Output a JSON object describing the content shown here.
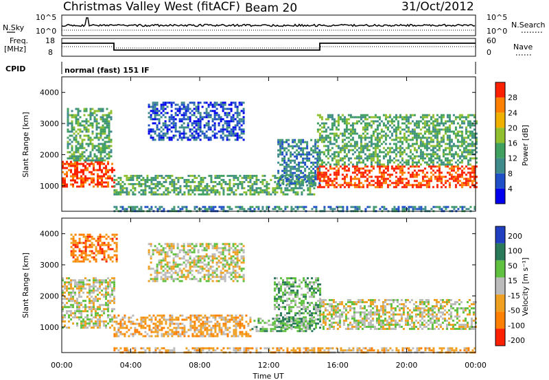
{
  "header": {
    "station": "Christmas Valley West (fitACF)",
    "beam": "Beam 20",
    "date": "31/Oct/2012"
  },
  "strip_labels": {
    "nsky": "N.Sky",
    "nsky_ticks": [
      "10^5",
      "10^0"
    ],
    "nsearch": "N.Search",
    "nsearch_ticks": [
      "10^5",
      "10^0"
    ],
    "freq_line1": "Freq.",
    "freq_line2": "[MHz]",
    "freq_ticks": [
      "18",
      "8"
    ],
    "nave": "Nave",
    "nave_ticks": [
      "60",
      "0"
    ],
    "cpid": "CPID",
    "mode": "normal (fast) 151 IF"
  },
  "colors": {
    "power": [
      "#0000ee",
      "#2050c8",
      "#3f8a8a",
      "#40a060",
      "#90c030",
      "#f0b000",
      "#ff7f00",
      "#ff2000"
    ],
    "velocity": [
      "#2040c0",
      "#2a7a5a",
      "#60c040",
      "#bbbbbb",
      "#f0a020",
      "#ff7f00",
      "#ff2000"
    ]
  },
  "chart_data": [
    {
      "type": "heatmap",
      "title": "Power",
      "ylabel": "Slant Range [km]",
      "ylim": [
        180,
        4500
      ],
      "yticks": [
        1000,
        2000,
        3000,
        4000
      ],
      "xlim": [
        "00:00",
        "24:00"
      ],
      "colorbar_label": "Power [dB]",
      "colorbar_ticks": [
        4,
        8,
        12,
        16,
        20,
        24,
        28
      ],
      "colorbar_range": [
        0,
        32
      ],
      "regions": [
        {
          "t0": 0.0,
          "t1": 3.1,
          "r0": 1000,
          "r1": 1800,
          "level": 7
        },
        {
          "t0": 0.3,
          "t1": 2.9,
          "r0": 1800,
          "r1": 3500,
          "level": 3
        },
        {
          "t0": 3.0,
          "t1": 14.7,
          "r0": 750,
          "r1": 1350,
          "level": 3
        },
        {
          "t0": 5.0,
          "t1": 10.5,
          "r0": 2500,
          "r1": 3700,
          "level": 1
        },
        {
          "t0": 12.5,
          "t1": 15.0,
          "r0": 1000,
          "r1": 2500,
          "level": 2
        },
        {
          "t0": 14.8,
          "t1": 24.0,
          "r0": 950,
          "r1": 1650,
          "level": 7
        },
        {
          "t0": 14.8,
          "t1": 24.0,
          "r0": 1650,
          "r1": 3300,
          "level": 3
        },
        {
          "t0": 3.0,
          "t1": 24.0,
          "r0": 200,
          "r1": 350,
          "level": 2
        }
      ]
    },
    {
      "type": "heatmap",
      "title": "Velocity",
      "ylabel": "Slant Range [km]",
      "ylim": [
        180,
        4500
      ],
      "yticks": [
        1000,
        2000,
        3000,
        4000
      ],
      "xlim": [
        "00:00",
        "24:00"
      ],
      "xlabel": "Time UT",
      "xticks": [
        "00:00",
        "04:00",
        "08:00",
        "12:00",
        "16:00",
        "20:00",
        "00:00"
      ],
      "colorbar_label": "Velocity [m s⁻¹]",
      "colorbar_ticks": [
        200,
        100,
        50,
        15,
        -15,
        -50,
        -100,
        -200
      ],
      "regions": [
        {
          "t0": 0.0,
          "t1": 3.1,
          "r0": 1000,
          "r1": 2600,
          "level": 3
        },
        {
          "t0": 0.5,
          "t1": 3.2,
          "r0": 3100,
          "r1": 4000,
          "level": 5
        },
        {
          "t0": 3.0,
          "t1": 11.0,
          "r0": 700,
          "r1": 1400,
          "level": 4
        },
        {
          "t0": 11.0,
          "t1": 14.7,
          "r0": 900,
          "r1": 1300,
          "level": 2
        },
        {
          "t0": 12.3,
          "t1": 15.0,
          "r0": 1000,
          "r1": 2600,
          "level": 2
        },
        {
          "t0": 15.0,
          "t1": 24.0,
          "r0": 950,
          "r1": 1900,
          "level": 3
        },
        {
          "t0": 3.0,
          "t1": 24.0,
          "r0": 200,
          "r1": 350,
          "level": 4
        },
        {
          "t0": 5.0,
          "t1": 10.5,
          "r0": 2500,
          "r1": 3700,
          "level": 3
        }
      ]
    }
  ]
}
